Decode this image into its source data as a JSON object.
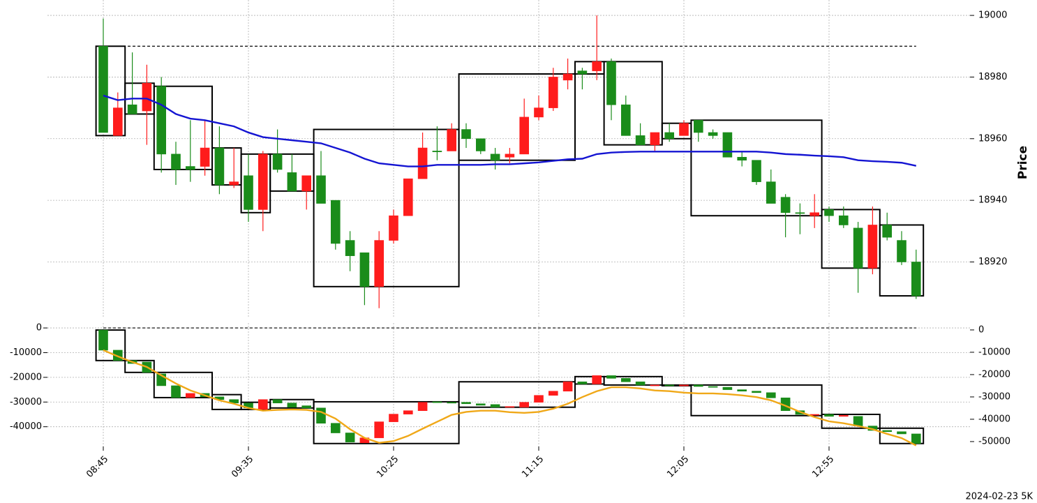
{
  "footer": "2024-02-23 5K",
  "chart_data": [
    {
      "type": "candlestick",
      "ylabel": "Price",
      "ylim": [
        18902,
        19005
      ],
      "yticks": [
        18920,
        18940,
        18960,
        18980,
        19000
      ],
      "grid": true,
      "up_color": "#ff1c1c",
      "down_color": "#1a8c1a",
      "reference_line": 18990,
      "open": [
        18990,
        18961,
        18971,
        18969,
        18977,
        18955,
        18951,
        18951,
        18957,
        18945,
        18948,
        18937,
        18955,
        18949,
        18943,
        18948,
        18940,
        18927,
        18923,
        18912,
        18927,
        18935,
        18947,
        18956,
        18956,
        18963,
        18960,
        18955,
        18954,
        18955,
        18967,
        18970,
        18979,
        18982,
        18982,
        18985,
        18971,
        18961,
        18958,
        18962,
        18961,
        18966,
        18962,
        18962,
        18954,
        18953,
        18946,
        18941,
        18936,
        18935,
        18937,
        18935,
        18931,
        18918,
        18932,
        18927,
        18920
      ],
      "high": [
        18999,
        18975,
        18988,
        18984,
        18980,
        18959,
        18966,
        18966,
        18964,
        18957,
        18955,
        18956,
        18963,
        18955,
        18948,
        18956,
        18940,
        18930,
        18923,
        18930,
        18937,
        18947,
        18962,
        18964,
        18965,
        18965,
        18960,
        18957,
        18957,
        18973,
        18974,
        18983,
        18986,
        18983,
        19000,
        18986,
        18974,
        18965,
        18962,
        18965,
        18966,
        18966,
        18963,
        18962,
        18956,
        18953,
        18950,
        18942,
        18939,
        18942,
        18938,
        18938,
        18933,
        18938,
        18936,
        18930,
        18924
      ],
      "low": [
        18962,
        18961,
        18968,
        18958,
        18949,
        18945,
        18946,
        18948,
        18942,
        18944,
        18933,
        18930,
        18949,
        18943,
        18937,
        18939,
        18924,
        18917,
        18906,
        18905,
        18926,
        18935,
        18947,
        18953,
        18956,
        18957,
        18955,
        18950,
        18952,
        18955,
        18966,
        18969,
        18976,
        18976,
        18979,
        18966,
        18961,
        18958,
        18956,
        18959,
        18961,
        18959,
        18960,
        18954,
        18951,
        18945,
        18939,
        18928,
        18929,
        18931,
        18933,
        18931,
        18910,
        18916,
        18927,
        18919,
        18908
      ],
      "close": [
        18962,
        18970,
        18968,
        18978,
        18955,
        18950,
        18950,
        18957,
        18945,
        18946,
        18937,
        18955,
        18950,
        18943,
        18948,
        18939,
        18926,
        18922,
        18912,
        18927,
        18935,
        18947,
        18957,
        18956,
        18963,
        18960,
        18956,
        18953,
        18955,
        18967,
        18970,
        18980,
        18981,
        18981,
        18985,
        18971,
        18961,
        18958,
        18962,
        18960,
        18965,
        18962,
        18961,
        18954,
        18953,
        18946,
        18939,
        18936,
        18936,
        18936,
        18935,
        18932,
        18918,
        18932,
        18928,
        18920,
        18909
      ],
      "lines": [
        {
          "color": "#1414d2",
          "values": [
            18974,
            18972.5,
            18973,
            18973,
            18971,
            18968,
            18966.5,
            18966,
            18965,
            18964,
            18962,
            18960.5,
            18960,
            18959.5,
            18959,
            18958.5,
            18957,
            18955.5,
            18953.5,
            18952,
            18951.5,
            18951,
            18951,
            18951.5,
            18951.5,
            18951.5,
            18951.5,
            18951.7,
            18951.7,
            18952,
            18952.3,
            18952.8,
            18953.3,
            18953.5,
            18955,
            18955.5,
            18955.7,
            18955.8,
            18955.8,
            18955.8,
            18955.8,
            18955.8,
            18955.8,
            18955.8,
            18955.8,
            18955.8,
            18955.5,
            18955,
            18954.8,
            18954.5,
            18954.3,
            18954,
            18953,
            18952.7,
            18952.5,
            18952.2,
            18951.2
          ]
        }
      ],
      "boxes": [
        {
          "start": 0,
          "end": 1,
          "low": 18961,
          "high": 18990
        },
        {
          "start": 2,
          "end": 3,
          "low": 18968,
          "high": 18978
        },
        {
          "start": 4,
          "end": 7,
          "low": 18950,
          "high": 18977
        },
        {
          "start": 8,
          "end": 9,
          "low": 18945,
          "high": 18957
        },
        {
          "start": 10,
          "end": 11,
          "low": 18936,
          "high": 18955
        },
        {
          "start": 12,
          "end": 14,
          "low": 18943,
          "high": 18955
        },
        {
          "start": 15,
          "end": 24,
          "low": 18912,
          "high": 18963
        },
        {
          "start": 25,
          "end": 32,
          "low": 18953,
          "high": 18981
        },
        {
          "start": 33,
          "end": 34,
          "low": 18981,
          "high": 18985
        },
        {
          "start": 35,
          "end": 38,
          "low": 18958,
          "high": 18985
        },
        {
          "start": 39,
          "end": 40,
          "low": 18960,
          "high": 18965
        },
        {
          "start": 41,
          "end": 49,
          "low": 18935,
          "high": 18966
        },
        {
          "start": 50,
          "end": 53,
          "low": 18918,
          "high": 18937
        },
        {
          "start": 54,
          "end": 56,
          "low": 18909,
          "high": 18932
        }
      ]
    },
    {
      "type": "candlestick",
      "ylim": [
        -48000,
        2000
      ],
      "yticks": [
        0,
        -10000,
        -20000,
        -30000,
        -40000
      ],
      "y2lim": [
        -52200,
        3100
      ],
      "y2ticks": [
        0,
        -10000,
        -20000,
        -30000,
        -40000,
        -50000
      ],
      "grid": true,
      "up_color": "#ff1c1c",
      "down_color": "#1a8c1a",
      "reference_line": 0,
      "categories": [
        "08:45",
        null,
        null,
        null,
        null,
        null,
        null,
        null,
        null,
        null,
        "09:35",
        null,
        null,
        null,
        null,
        null,
        null,
        null,
        null,
        null,
        "10:25",
        null,
        null,
        null,
        null,
        null,
        null,
        null,
        null,
        null,
        "11:15",
        null,
        null,
        null,
        null,
        null,
        null,
        null,
        null,
        null,
        "12:05",
        null,
        null,
        null,
        null,
        null,
        null,
        null,
        null,
        null,
        "12:55",
        null,
        null,
        null,
        null,
        null,
        null
      ],
      "open": [
        -850,
        -9000,
        -13200,
        -13800,
        -18600,
        -23400,
        -28200,
        -26500,
        -27900,
        -29000,
        -30400,
        -33000,
        -29000,
        -30400,
        -31500,
        -32400,
        -38600,
        -42500,
        -46500,
        -44500,
        -38000,
        -34900,
        -33500,
        -29900,
        -30100,
        -30100,
        -30700,
        -31000,
        -32100,
        -32100,
        -30100,
        -27300,
        -25600,
        -21800,
        -22700,
        -19300,
        -20400,
        -21800,
        -23400,
        -23100,
        -23400,
        -23100,
        -23700,
        -24000,
        -25000,
        -25600,
        -26200,
        -28300,
        -33500,
        -35200,
        -35000,
        -35800,
        -35800,
        -39700,
        -41500,
        -42000,
        -42900
      ],
      "close": [
        -9000,
        -13200,
        -14400,
        -18000,
        -23400,
        -28200,
        -26500,
        -27900,
        -29000,
        -30400,
        -32400,
        -29000,
        -30400,
        -32100,
        -32400,
        -38600,
        -42500,
        -46200,
        -44500,
        -38000,
        -34900,
        -33500,
        -30100,
        -30100,
        -30400,
        -30700,
        -31300,
        -32100,
        -31800,
        -30100,
        -27300,
        -25600,
        -21800,
        -22700,
        -19300,
        -20400,
        -21800,
        -23100,
        -23100,
        -23400,
        -23100,
        -23700,
        -24000,
        -25000,
        -25600,
        -26200,
        -28300,
        -33500,
        -35000,
        -35000,
        -35800,
        -35400,
        -39700,
        -41500,
        -42000,
        -42900,
        -46800
      ],
      "lines": [
        {
          "color": "#f0a818",
          "values": [
            -9000,
            -11500,
            -13800,
            -15800,
            -19200,
            -22500,
            -25300,
            -27300,
            -29300,
            -30700,
            -32400,
            -33500,
            -33200,
            -33000,
            -33200,
            -34000,
            -36700,
            -41000,
            -44500,
            -46500,
            -45800,
            -43700,
            -40800,
            -38000,
            -35200,
            -34000,
            -33500,
            -33500,
            -34100,
            -34400,
            -34000,
            -32700,
            -30700,
            -28000,
            -25600,
            -24000,
            -24000,
            -24500,
            -25300,
            -25600,
            -26200,
            -26500,
            -26500,
            -26800,
            -27300,
            -28000,
            -29300,
            -31500,
            -34000,
            -36100,
            -37800,
            -38600,
            -39700,
            -41000,
            -42900,
            -44600,
            -47600
          ]
        }
      ],
      "boxes": [
        {
          "start": 0,
          "end": 1,
          "low": -13200,
          "high": -850
        },
        {
          "start": 2,
          "end": 3,
          "low": -18000,
          "high": -13200
        },
        {
          "start": 4,
          "end": 7,
          "low": -28200,
          "high": -18000
        },
        {
          "start": 8,
          "end": 9,
          "low": -33000,
          "high": -27000
        },
        {
          "start": 10,
          "end": 11,
          "low": -33000,
          "high": -30100
        },
        {
          "start": 12,
          "end": 14,
          "low": -32400,
          "high": -29000
        },
        {
          "start": 15,
          "end": 24,
          "low": -46800,
          "high": -29900
        },
        {
          "start": 25,
          "end": 32,
          "low": -32100,
          "high": -21800
        },
        {
          "start": 33,
          "end": 34,
          "low": -22700,
          "high": -19700
        },
        {
          "start": 35,
          "end": 38,
          "low": -23100,
          "high": -19700
        },
        {
          "start": 39,
          "end": 40,
          "low": -23400,
          "high": -23100
        },
        {
          "start": 41,
          "end": 49,
          "low": -35500,
          "high": -23100
        },
        {
          "start": 50,
          "end": 53,
          "low": -40600,
          "high": -35000
        },
        {
          "start": 54,
          "end": 56,
          "low": -46800,
          "high": -40600
        }
      ]
    }
  ]
}
